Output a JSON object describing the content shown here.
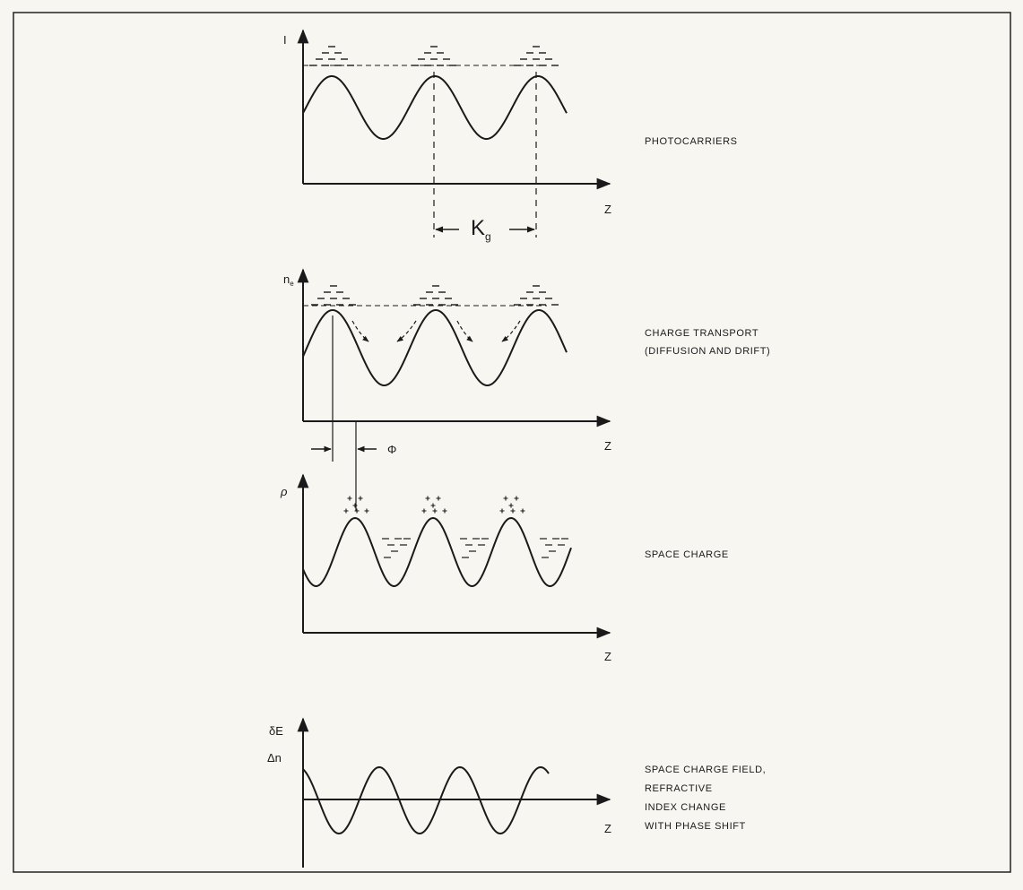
{
  "panels": [
    {
      "id": "photocarriers",
      "y_symbol": "I",
      "x_symbol": "Z",
      "label_lines": [
        "PHOTOCARRIERS"
      ],
      "period_symbol": "K",
      "period_subscript": "g"
    },
    {
      "id": "charge-transport",
      "y_symbol": "n",
      "y_subscript": "e",
      "x_symbol": "Z",
      "label_lines": [
        "CHARGE TRANSPORT",
        "(DIFFUSION AND DRIFT)"
      ],
      "phase_symbol": "Φ"
    },
    {
      "id": "space-charge",
      "y_symbol": "ρ",
      "x_symbol": "Z",
      "label_lines": [
        "SPACE CHARGE"
      ]
    },
    {
      "id": "space-charge-field",
      "y_symbol_top": "δE",
      "y_symbol_bottom": "Δn",
      "x_symbol": "Z",
      "label_lines": [
        "SPACE CHARGE FIELD,",
        "REFRACTIVE",
        "INDEX CHANGE",
        "WITH PHASE SHIFT"
      ]
    }
  ],
  "colors": {
    "ink": "#1a1a1a",
    "paper": "#f7f6f1",
    "frame": "#222222"
  }
}
